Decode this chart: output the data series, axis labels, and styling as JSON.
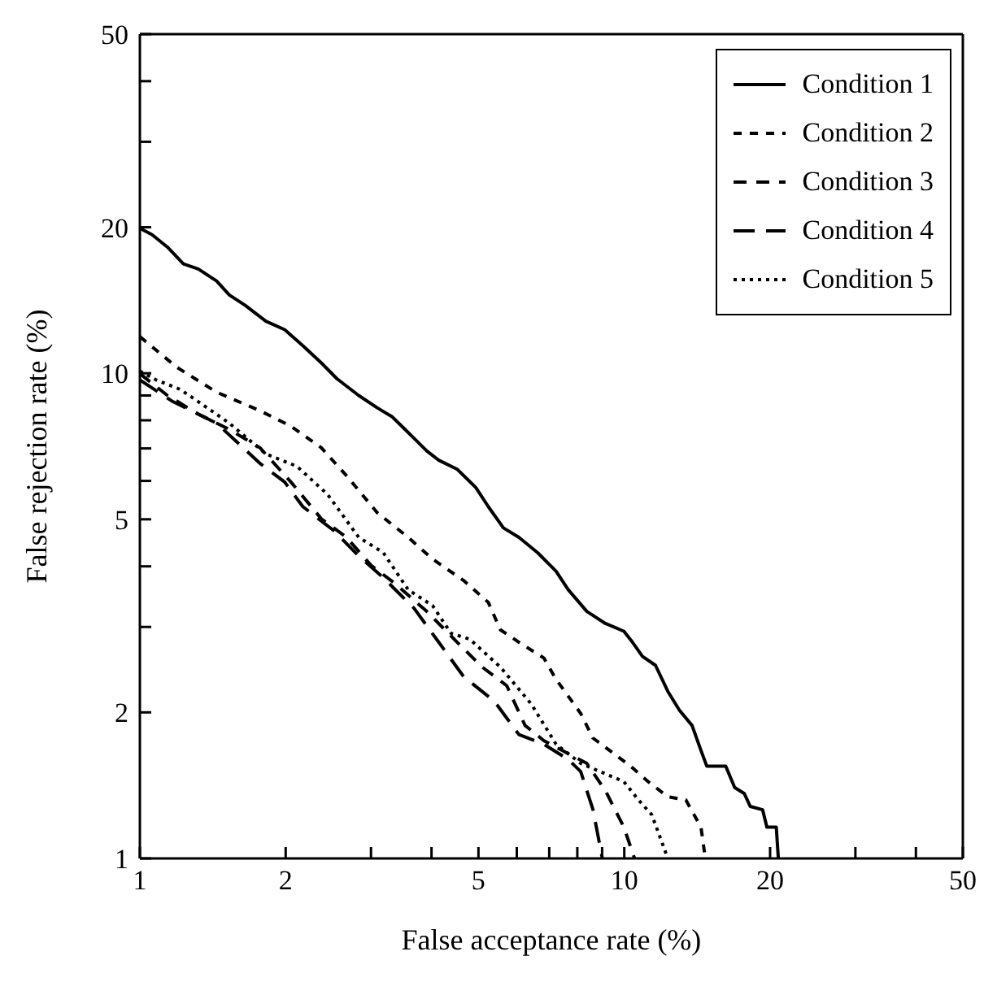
{
  "chart_data": {
    "type": "line",
    "xlabel": "False acceptance rate (%)",
    "ylabel": "False rejection rate (%)",
    "log": "xy",
    "grid": false,
    "legend": "top right",
    "marker": "none",
    "xlim": [
      1,
      50
    ],
    "ylim": [
      1,
      50
    ],
    "xticks": [
      1,
      2,
      {
        "value": 3,
        "label": null
      },
      {
        "value": 4,
        "label": null
      },
      5,
      {
        "value": 6,
        "label": null
      },
      {
        "value": 7,
        "label": null
      },
      {
        "value": 8,
        "label": null
      },
      {
        "value": 9,
        "label": null
      },
      10,
      20,
      {
        "value": 30,
        "label": null
      },
      {
        "value": 40,
        "label": null
      },
      50
    ],
    "yticks": [
      1,
      2,
      {
        "value": 3,
        "label": null
      },
      {
        "value": 4,
        "label": null
      },
      5,
      {
        "value": 6,
        "label": null
      },
      {
        "value": 7,
        "label": null
      },
      {
        "value": 8,
        "label": null
      },
      {
        "value": 9,
        "label": null
      },
      10,
      20,
      {
        "value": 30,
        "label": null
      },
      {
        "value": 40,
        "label": null
      },
      50
    ],
    "series": [
      {
        "name": "Condition 1",
        "color": "#000000",
        "line_style": "solid",
        "x": [
          1.0,
          1.06,
          1.14,
          1.23,
          1.32,
          1.44,
          1.53,
          1.65,
          1.82,
          1.99,
          2.17,
          2.37,
          2.55,
          2.83,
          3.09,
          3.32,
          3.58,
          3.91,
          4.14,
          4.52,
          4.94,
          5.24,
          5.63,
          6.06,
          6.62,
          7.23,
          7.66,
          8.37,
          9.14,
          9.98,
          10.4,
          10.9,
          11.6,
          12.3,
          13.0,
          13.8,
          14.4,
          14.8,
          16.2,
          16.9,
          17.7,
          18.2,
          19.3,
          19.7,
          20.6,
          20.8
        ],
        "values": [
          19.9,
          19.3,
          18.2,
          16.8,
          16.4,
          15.5,
          14.5,
          13.8,
          12.8,
          12.3,
          11.4,
          10.5,
          9.75,
          9.0,
          8.49,
          8.13,
          7.55,
          6.92,
          6.62,
          6.34,
          5.81,
          5.31,
          4.8,
          4.59,
          4.27,
          3.91,
          3.58,
          3.23,
          3.05,
          2.94,
          2.79,
          2.61,
          2.5,
          2.21,
          2.02,
          1.88,
          1.67,
          1.55,
          1.55,
          1.4,
          1.36,
          1.28,
          1.26,
          1.16,
          1.16,
          1.0
        ]
      },
      {
        "name": "Condition 2",
        "color": "#000000",
        "line_style": "dashed",
        "x": [
          1.0,
          1.19,
          1.44,
          1.77,
          2.05,
          2.37,
          2.67,
          3.09,
          3.58,
          4.02,
          4.66,
          5.24,
          5.55,
          6.06,
          6.82,
          7.23,
          8.13,
          8.62,
          10.3,
          11.2,
          12.3,
          13.4,
          14.4,
          14.7
        ],
        "values": [
          11.9,
          10.3,
          9.14,
          8.37,
          7.78,
          7.02,
          6.15,
          5.16,
          4.59,
          4.14,
          3.74,
          3.37,
          2.96,
          2.79,
          2.59,
          2.34,
          1.99,
          1.77,
          1.55,
          1.44,
          1.34,
          1.32,
          1.16,
          1.0
        ]
      },
      {
        "name": "Condition 3",
        "color": "#000000",
        "line_style": "dashed",
        "x": [
          1.0,
          1.14,
          1.32,
          1.53,
          1.77,
          2.05,
          2.37,
          2.67,
          3.0,
          3.37,
          3.91,
          4.52,
          5.09,
          5.72,
          6.24,
          6.82,
          7.44,
          8.37,
          9.14,
          9.98,
          10.5
        ],
        "values": [
          9.98,
          9.0,
          8.24,
          7.66,
          7.02,
          5.97,
          5.01,
          4.59,
          4.02,
          3.68,
          3.23,
          2.79,
          2.48,
          2.27,
          1.88,
          1.75,
          1.67,
          1.57,
          1.38,
          1.16,
          1.0
        ]
      },
      {
        "name": "Condition 4",
        "color": "#000000",
        "line_style": "dashed",
        "x": [
          1.0,
          1.17,
          1.44,
          1.77,
          1.99,
          2.17,
          2.52,
          2.83,
          3.18,
          3.68,
          4.14,
          4.66,
          5.39,
          6.06,
          6.82,
          7.66,
          8.13,
          8.62,
          9.01
        ],
        "values": [
          9.69,
          8.74,
          7.89,
          6.52,
          5.97,
          5.31,
          4.73,
          4.2,
          3.79,
          3.28,
          2.79,
          2.37,
          2.11,
          1.8,
          1.72,
          1.6,
          1.51,
          1.26,
          1.0
        ]
      },
      {
        "name": "Condition 5",
        "color": "#000000",
        "line_style": "dotted",
        "x": [
          1.0,
          1.08,
          1.21,
          1.32,
          1.53,
          1.82,
          2.11,
          2.44,
          2.83,
          3.18,
          3.58,
          4.02,
          4.39,
          4.8,
          5.55,
          6.43,
          7.23,
          8.13,
          9.98,
          10.7,
          11.4,
          12.3
        ],
        "values": [
          10.1,
          9.69,
          9.27,
          8.74,
          7.89,
          6.82,
          6.43,
          5.63,
          4.59,
          4.27,
          3.58,
          3.32,
          2.91,
          2.83,
          2.48,
          2.08,
          1.72,
          1.57,
          1.44,
          1.32,
          1.23,
          1.0
        ]
      }
    ]
  }
}
